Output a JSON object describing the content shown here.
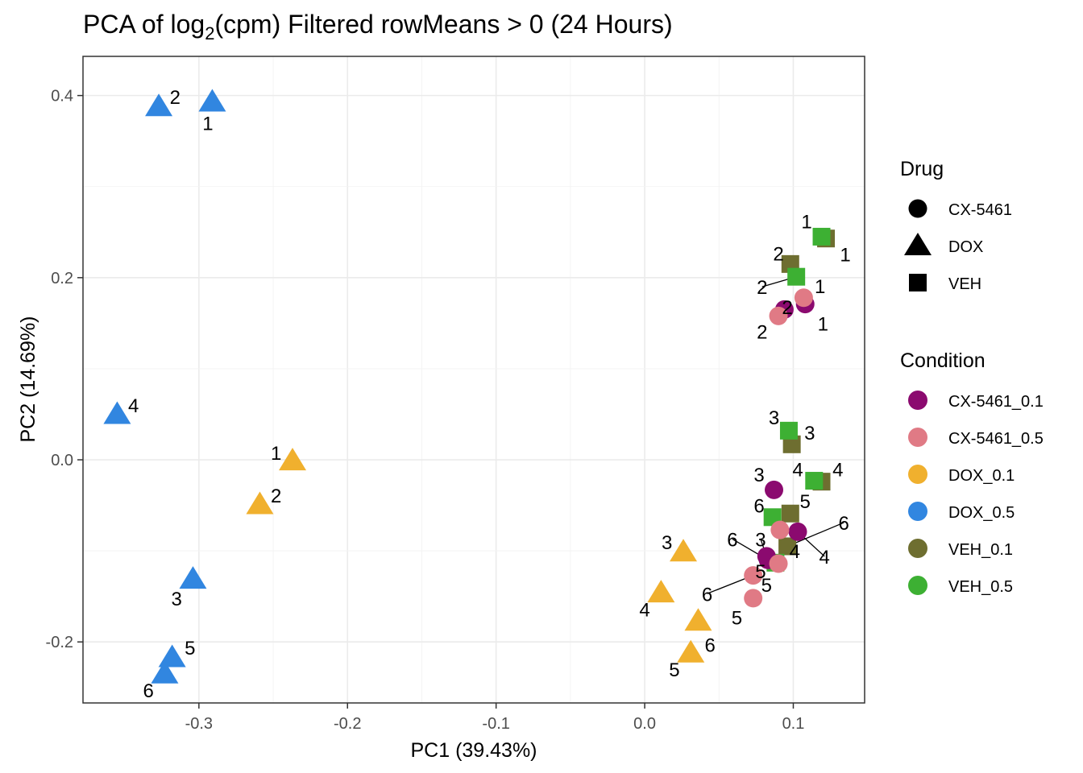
{
  "chart_data": {
    "type": "scatter",
    "title": "PCA of log",
    "title_sub": "2",
    "title_rest": "(cpm) Filtered rowMeans > 0 (24 Hours)",
    "xlabel": "PC1 (39.43%)",
    "ylabel": "PC2 (14.69%)",
    "xlim": [
      -0.378,
      0.148
    ],
    "ylim": [
      -0.267,
      0.443
    ],
    "xticks": [
      -0.3,
      -0.2,
      -0.1,
      0.0,
      0.1
    ],
    "xtick_labels": [
      "-0.3",
      "-0.2",
      "-0.1",
      "0.0",
      "0.1"
    ],
    "yticks": [
      -0.2,
      0.0,
      0.2,
      0.4
    ],
    "ytick_labels": [
      "-0.2",
      "0.0",
      "0.2",
      "0.4"
    ],
    "grid": true,
    "legend_drug": {
      "title": "Drug",
      "items": [
        {
          "label": "CX-5461",
          "shape": "circle"
        },
        {
          "label": "DOX",
          "shape": "triangle"
        },
        {
          "label": "VEH",
          "shape": "square"
        }
      ]
    },
    "legend_condition": {
      "title": "Condition",
      "items": [
        {
          "label": "CX-5461_0.1",
          "color": "#8B0A6F"
        },
        {
          "label": "CX-5461_0.5",
          "color": "#E07A85"
        },
        {
          "label": "DOX_0.1",
          "color": "#F0B02E"
        },
        {
          "label": "DOX_0.5",
          "color": "#3186E0"
        },
        {
          "label": "VEH_0.1",
          "color": "#6E6E30"
        },
        {
          "label": "VEH_0.5",
          "color": "#3DB033"
        }
      ]
    },
    "points": [
      {
        "x": -0.291,
        "y": 0.393,
        "cond": "DOX_0.5",
        "shape": "triangle",
        "label": "1",
        "lx": -0.294,
        "ly": 0.37
      },
      {
        "x": -0.327,
        "y": 0.388,
        "cond": "DOX_0.5",
        "shape": "triangle",
        "label": "2",
        "lx": -0.316,
        "ly": 0.399
      },
      {
        "x": -0.355,
        "y": 0.05,
        "cond": "DOX_0.5",
        "shape": "triangle",
        "label": "4",
        "lx": -0.344,
        "ly": 0.06
      },
      {
        "x": -0.304,
        "y": -0.131,
        "cond": "DOX_0.5",
        "shape": "triangle",
        "label": "3",
        "lx": -0.315,
        "ly": -0.152
      },
      {
        "x": -0.318,
        "y": -0.217,
        "cond": "DOX_0.5",
        "shape": "triangle",
        "label": "5",
        "lx": -0.306,
        "ly": -0.206
      },
      {
        "x": -0.323,
        "y": -0.235,
        "cond": "DOX_0.5",
        "shape": "triangle",
        "label": "6",
        "lx": -0.334,
        "ly": -0.253
      },
      {
        "x": -0.237,
        "y": -0.001,
        "cond": "DOX_0.1",
        "shape": "triangle",
        "label": "1",
        "lx": -0.248,
        "ly": 0.008
      },
      {
        "x": -0.259,
        "y": -0.049,
        "cond": "DOX_0.1",
        "shape": "triangle",
        "label": "2",
        "lx": -0.248,
        "ly": -0.039
      },
      {
        "x": 0.026,
        "y": -0.101,
        "cond": "DOX_0.1",
        "shape": "triangle",
        "label": "3",
        "lx": 0.015,
        "ly": -0.09
      },
      {
        "x": 0.011,
        "y": -0.146,
        "cond": "DOX_0.1",
        "shape": "triangle",
        "label": "4",
        "lx": 0.0,
        "ly": -0.164
      },
      {
        "x": 0.031,
        "y": -0.212,
        "cond": "DOX_0.1",
        "shape": "triangle",
        "label": "5",
        "lx": 0.02,
        "ly": -0.23
      },
      {
        "x": 0.036,
        "y": -0.177,
        "cond": "DOX_0.1",
        "shape": "triangle",
        "label": "6",
        "lx": 0.044,
        "ly": -0.203
      },
      {
        "x": 0.122,
        "y": 0.243,
        "cond": "VEH_0.1",
        "shape": "square",
        "label": "1",
        "lx": 0.135,
        "ly": 0.226
      },
      {
        "x": 0.098,
        "y": 0.215,
        "cond": "VEH_0.1",
        "shape": "square",
        "label": "2",
        "lx": 0.09,
        "ly": 0.227
      },
      {
        "x": 0.099,
        "y": 0.017,
        "cond": "VEH_0.1",
        "shape": "square",
        "label": "3",
        "lx": 0.111,
        "ly": 0.03
      },
      {
        "x": 0.119,
        "y": -0.024,
        "cond": "VEH_0.1",
        "shape": "square",
        "label": "4",
        "lx": 0.13,
        "ly": -0.01
      },
      {
        "x": 0.098,
        "y": -0.059,
        "cond": "VEH_0.1",
        "shape": "square",
        "label": "5",
        "lx": 0.108,
        "ly": -0.045
      },
      {
        "x": 0.096,
        "y": -0.095,
        "cond": "VEH_0.1",
        "shape": "square",
        "label": "6",
        "lx": 0.134,
        "ly": -0.069,
        "leader": true
      },
      {
        "x": 0.119,
        "y": 0.245,
        "cond": "VEH_0.5",
        "shape": "square",
        "label": "1",
        "lx": 0.109,
        "ly": 0.262
      },
      {
        "x": 0.102,
        "y": 0.201,
        "cond": "VEH_0.5",
        "shape": "square",
        "label": "2",
        "lx": 0.079,
        "ly": 0.19,
        "leader": true
      },
      {
        "x": 0.097,
        "y": 0.032,
        "cond": "VEH_0.5",
        "shape": "square",
        "label": "3",
        "lx": 0.087,
        "ly": 0.047
      },
      {
        "x": 0.114,
        "y": -0.023,
        "cond": "VEH_0.5",
        "shape": "square",
        "label": "4",
        "lx": 0.103,
        "ly": -0.01
      },
      {
        "x": 0.086,
        "y": -0.063,
        "cond": "VEH_0.5",
        "shape": "square",
        "label": "6",
        "lx": 0.077,
        "ly": -0.05
      },
      {
        "x": 0.088,
        "y": -0.113,
        "cond": "VEH_0.5",
        "shape": "square",
        "label": "5",
        "lx": 0.078,
        "ly": -0.122
      },
      {
        "x": 0.108,
        "y": 0.171,
        "cond": "CX-5461_0.1",
        "shape": "circle",
        "label": "1",
        "lx": 0.12,
        "ly": 0.15
      },
      {
        "x": 0.094,
        "y": 0.165,
        "cond": "CX-5461_0.1",
        "shape": "circle",
        "label": "2",
        "lx": 0.096,
        "ly": 0.168
      },
      {
        "x": 0.087,
        "y": -0.033,
        "cond": "CX-5461_0.1",
        "shape": "circle",
        "label": "3",
        "lx": 0.077,
        "ly": -0.016
      },
      {
        "x": 0.103,
        "y": -0.079,
        "cond": "CX-5461_0.1",
        "shape": "circle",
        "label": "4",
        "lx": 0.121,
        "ly": -0.106,
        "leader": true
      },
      {
        "x": 0.082,
        "y": -0.106,
        "cond": "CX-5461_0.1",
        "shape": "circle",
        "label": "3",
        "lx": 0.078,
        "ly": -0.087,
        "leader": true
      },
      {
        "x": 0.083,
        "y": -0.11,
        "cond": "CX-5461_0.1",
        "shape": "circle",
        "label": "6",
        "lx": 0.059,
        "ly": -0.087,
        "leader": true
      },
      {
        "x": 0.107,
        "y": 0.178,
        "cond": "CX-5461_0.5",
        "shape": "circle",
        "label": "1",
        "lx": 0.118,
        "ly": 0.191
      },
      {
        "x": 0.09,
        "y": 0.158,
        "cond": "CX-5461_0.5",
        "shape": "circle",
        "label": "2",
        "lx": 0.079,
        "ly": 0.141
      },
      {
        "x": 0.091,
        "y": -0.077,
        "cond": "CX-5461_0.5",
        "shape": "circle",
        "label": "4",
        "lx": 0.101,
        "ly": -0.1
      },
      {
        "x": 0.09,
        "y": -0.114,
        "cond": "CX-5461_0.5",
        "shape": "circle",
        "label": "5",
        "lx": 0.082,
        "ly": -0.137
      },
      {
        "x": 0.073,
        "y": -0.127,
        "cond": "CX-5461_0.5",
        "shape": "circle",
        "label": "6",
        "lx": 0.042,
        "ly": -0.147,
        "leader": true
      },
      {
        "x": 0.073,
        "y": -0.152,
        "cond": "CX-5461_0.5",
        "shape": "circle",
        "label": "5",
        "lx": 0.062,
        "ly": -0.173
      }
    ]
  }
}
